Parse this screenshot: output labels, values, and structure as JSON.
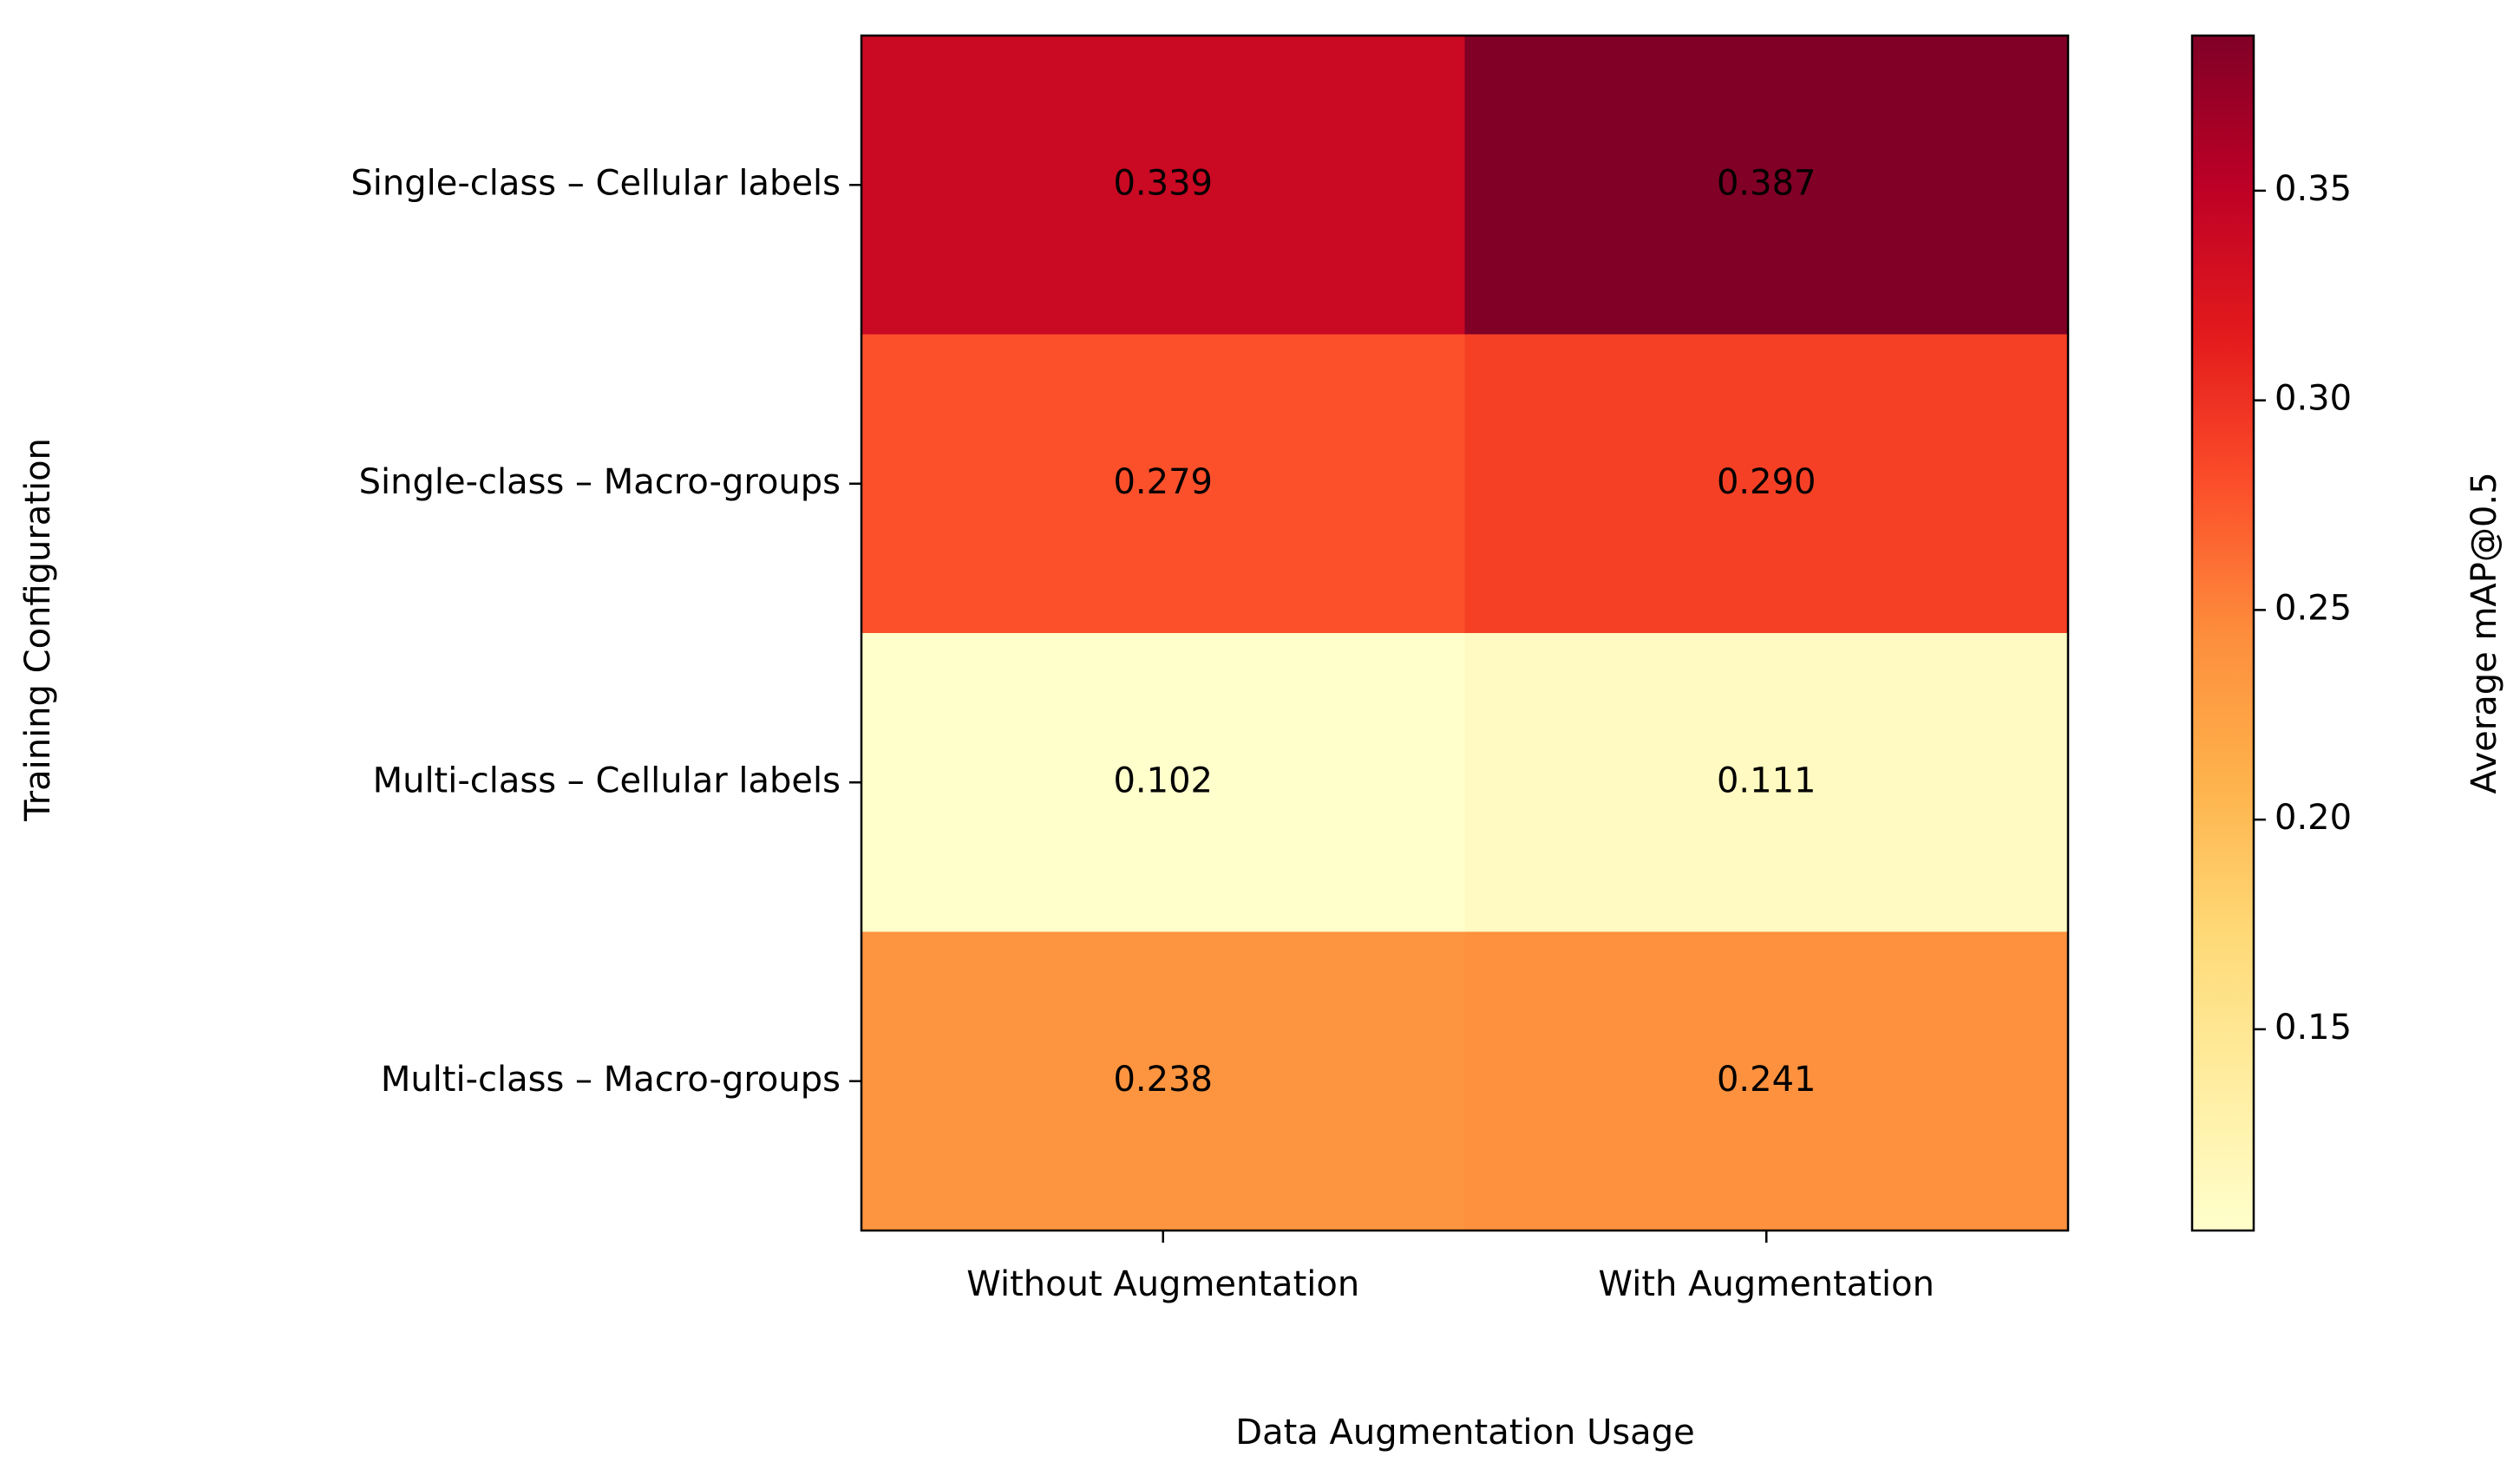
{
  "chart_data": {
    "type": "heatmap",
    "x_label": "Data Augmentation Usage",
    "y_label": "Training Configuration",
    "x_categories": [
      "Without Augmentation",
      "With Augmentation"
    ],
    "y_categories": [
      "Single-class – Cellular labels",
      "Single-class – Macro-groups",
      "Multi-class – Cellular labels",
      "Multi-class – Macro-groups"
    ],
    "z": [
      [
        0.339,
        0.387
      ],
      [
        0.279,
        0.29
      ],
      [
        0.102,
        0.111
      ],
      [
        0.238,
        0.241
      ]
    ],
    "value_labels": [
      [
        "0.339",
        "0.387"
      ],
      [
        "0.279",
        "0.290"
      ],
      [
        "0.102",
        "0.111"
      ],
      [
        "0.238",
        "0.241"
      ]
    ],
    "colormap": "YlOrRd",
    "colorbar_label": "Average mAP@0.5",
    "clim": [
      0.102,
      0.387
    ],
    "colorbar_ticks": [
      0.15,
      {
        "value": 0.2,
        "label": "0.20"
      },
      0.25,
      {
        "value": 0.3,
        "label": "0.30"
      },
      0.35
    ]
  }
}
